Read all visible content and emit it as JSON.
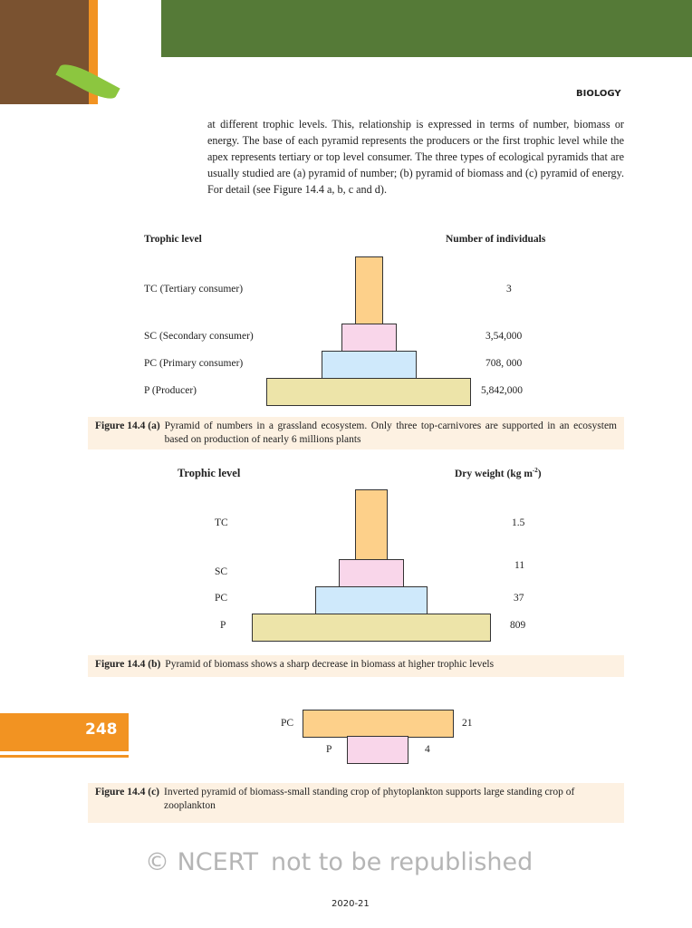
{
  "header": {
    "subject": "BIOLOGY"
  },
  "body_text": "at different trophic levels. This, relationship is expressed in terms of number, biomass or energy. The base of each pyramid represents the producers or the first trophic level while the apex represents tertiary or top level consumer. The three types of ecological pyramids that are usually studied are (a) pyramid of number; (b) pyramid of biomass and (c) pyramid of energy. For detail (see Figure 14.4 a, b, c and d).",
  "fig_a": {
    "col_left": "Trophic level",
    "col_right": "Number of individuals",
    "levels": [
      {
        "label": "TC (Tertiary consumer)",
        "value": "3",
        "color": "#fdd08a"
      },
      {
        "label": "SC (Secondary consumer)",
        "value": "3,54,000",
        "color": "#f9d6ea"
      },
      {
        "label": "PC (Primary consumer)",
        "value": "708, 000",
        "color": "#cfe9fb"
      },
      {
        "label": "P (Producer)",
        "value": "5,842,000",
        "color": "#ede4a9"
      }
    ],
    "caption_label": "Figure 14.4 (a)",
    "caption": "Pyramid of numbers in a grassland ecosystem. Only three top-carnivores are supported in an ecosystem based on production of nearly 6 millions plants"
  },
  "fig_b": {
    "col_left": "Trophic level",
    "col_right": "Dry weight (kg m",
    "col_right_sup": "-2",
    "col_right_end": ")",
    "levels": [
      {
        "label": "TC",
        "value": "1.5"
      },
      {
        "label": "SC",
        "value": "11"
      },
      {
        "label": "PC",
        "value": "37"
      },
      {
        "label": "P",
        "value": "809"
      }
    ],
    "caption_label": "Figure 14.4 (b)",
    "caption": "Pyramid of biomass shows a sharp decrease in biomass at higher trophic levels"
  },
  "fig_c": {
    "levels": [
      {
        "label": "PC",
        "value": "21"
      },
      {
        "label": "P",
        "value": "4"
      }
    ],
    "caption_label": "Figure 14.4 (c)",
    "caption": "Inverted pyramid of biomass-small standing crop of phytoplankton supports large standing crop of zooplankton"
  },
  "watermark": {
    "line1": "© NCERT",
    "line2": "not to be republished"
  },
  "page_number": "248",
  "footer": "2020-21"
}
